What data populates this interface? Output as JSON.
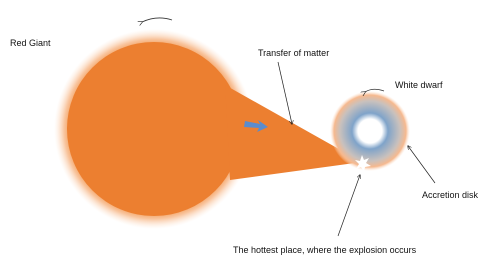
{
  "labels": {
    "red_giant": "Red Giant",
    "transfer": "Transfer of matter",
    "white_dwarf": "White dwarf",
    "accretion": "Accretion disk",
    "hottest": "The hottest place, where the explosion occurs"
  }
}
